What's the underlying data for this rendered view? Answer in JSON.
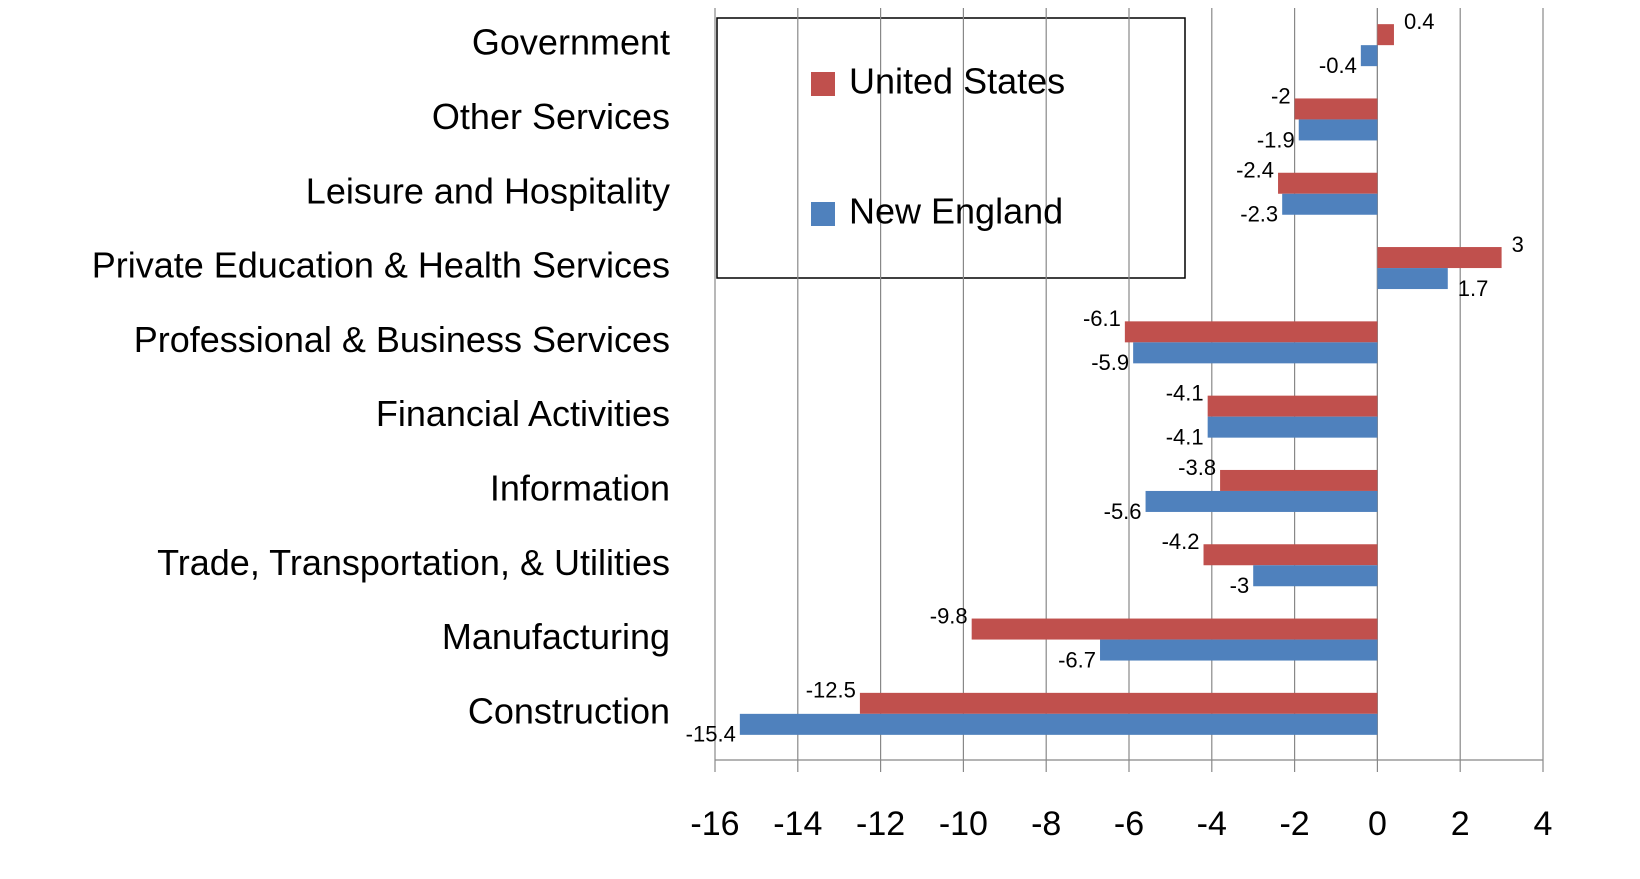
{
  "chart_data": {
    "type": "barh",
    "categories": [
      "Construction",
      "Manufacturing",
      "Trade, Transportation, & Utilities",
      "Information",
      "Financial Activities",
      "Professional & Business Services",
      "Private Education & Health Services",
      "Leisure and Hospitality",
      "Other Services",
      "Government"
    ],
    "series": [
      {
        "name": "United States",
        "color": "#c0504d",
        "values": [
          -12.5,
          -9.8,
          -4.2,
          -3.8,
          -4.1,
          -6.1,
          3,
          -2.4,
          -2,
          0.4
        ]
      },
      {
        "name": "New England",
        "color": "#4f81bd",
        "values": [
          -15.4,
          -6.7,
          -3,
          -5.6,
          -4.1,
          -5.9,
          1.7,
          -2.3,
          -1.9,
          -0.4
        ]
      }
    ],
    "xlim": [
      -16,
      4
    ],
    "xticks": [
      -16,
      -14,
      -12,
      -10,
      -8,
      -6,
      -4,
      -2,
      0,
      2,
      4
    ],
    "grid": true
  }
}
